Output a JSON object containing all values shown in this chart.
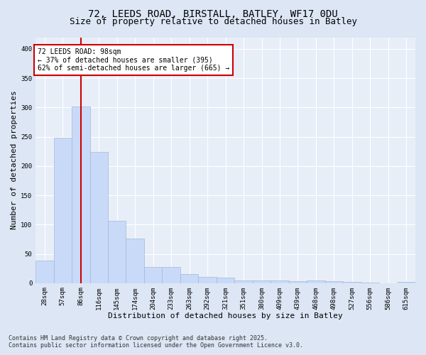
{
  "title_line1": "72, LEEDS ROAD, BIRSTALL, BATLEY, WF17 0DU",
  "title_line2": "Size of property relative to detached houses in Batley",
  "xlabel": "Distribution of detached houses by size in Batley",
  "ylabel": "Number of detached properties",
  "categories": [
    "28sqm",
    "57sqm",
    "86sqm",
    "116sqm",
    "145sqm",
    "174sqm",
    "204sqm",
    "233sqm",
    "263sqm",
    "292sqm",
    "321sqm",
    "351sqm",
    "380sqm",
    "409sqm",
    "439sqm",
    "468sqm",
    "498sqm",
    "527sqm",
    "556sqm",
    "586sqm",
    "615sqm"
  ],
  "values": [
    39,
    248,
    302,
    224,
    107,
    76,
    27,
    27,
    16,
    10,
    9,
    5,
    5,
    4,
    3,
    4,
    3,
    2,
    1,
    0,
    2
  ],
  "bar_color": "#c9daf8",
  "bar_edge_color": "#a4b8d8",
  "vline_x": 2,
  "vline_color": "#cc0000",
  "annotation_title": "72 LEEDS ROAD: 98sqm",
  "annotation_line1": "← 37% of detached houses are smaller (395)",
  "annotation_line2": "62% of semi-detached houses are larger (665) →",
  "annotation_box_color": "#ffffff",
  "annotation_box_edge": "#cc0000",
  "ylim": [
    0,
    420
  ],
  "yticks": [
    0,
    50,
    100,
    150,
    200,
    250,
    300,
    350,
    400
  ],
  "bg_color": "#dce6f5",
  "plot_bg_color": "#e8eef8",
  "grid_color": "#ffffff",
  "footer_line1": "Contains HM Land Registry data © Crown copyright and database right 2025.",
  "footer_line2": "Contains public sector information licensed under the Open Government Licence v3.0.",
  "title_fontsize": 10,
  "subtitle_fontsize": 9,
  "axis_label_fontsize": 8,
  "tick_fontsize": 6.5,
  "annotation_fontsize": 7,
  "footer_fontsize": 6
}
